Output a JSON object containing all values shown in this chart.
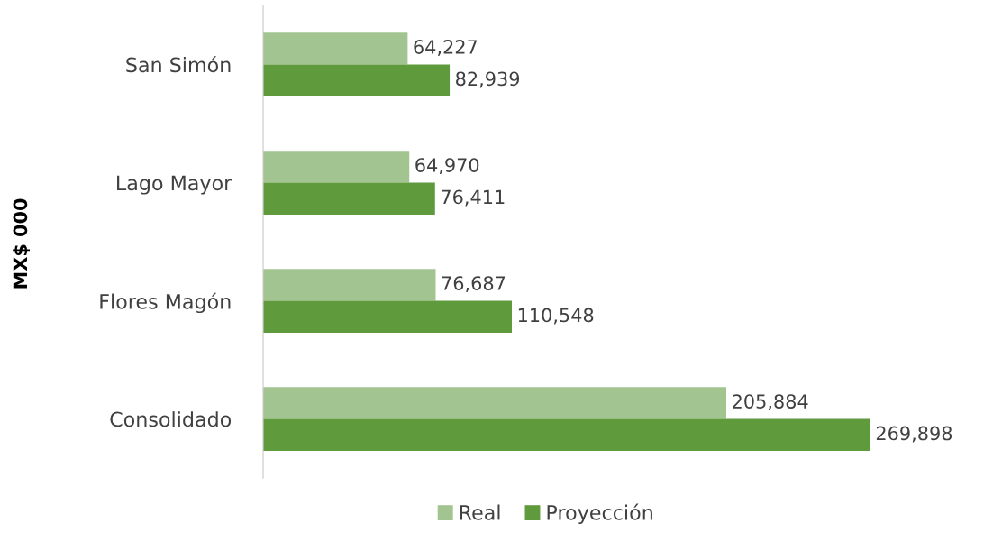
{
  "chart_data": {
    "type": "bar",
    "orientation": "horizontal",
    "ylabel": "MX$ 000",
    "categories": [
      "San Simón",
      "Lago Mayor",
      "Flores Magón",
      "Consolidado"
    ],
    "series": [
      {
        "name": "Real",
        "color": "#a2c490",
        "values": [
          64227,
          64970,
          76687,
          205884
        ],
        "value_labels": [
          "64,227",
          "64,970",
          "76,687",
          "205,884"
        ]
      },
      {
        "name": "Proyección",
        "color": "#5f9a3c",
        "values": [
          82939,
          76411,
          110548,
          269898
        ],
        "value_labels": [
          "82,939",
          "76,411",
          "110,548",
          "269,898"
        ]
      }
    ],
    "grid": false,
    "legend": "bottom"
  }
}
